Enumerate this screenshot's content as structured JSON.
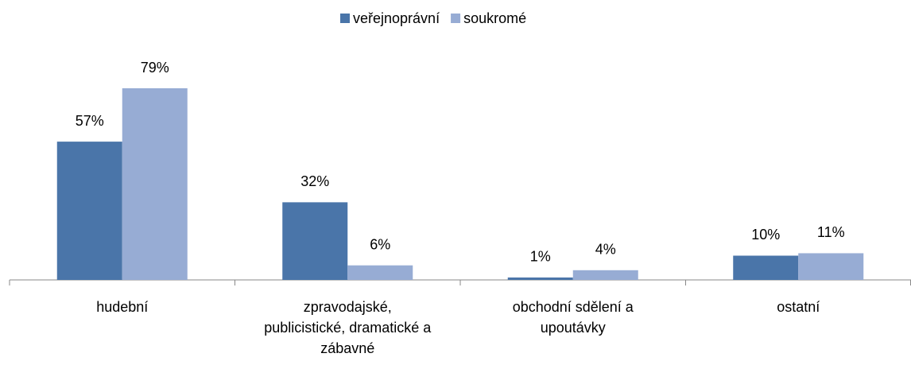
{
  "chart_data": {
    "type": "bar",
    "categories": [
      "hudební",
      "zpravodajské,\npublicistické, dramatické a\nzábavné",
      "obchodní sdělení a\nupoutávky",
      "ostatní"
    ],
    "series": [
      {
        "name": "veřejnoprávní",
        "color": "#4a75a9",
        "values": [
          57,
          32,
          1,
          10
        ],
        "value_labels": [
          "57%",
          "32%",
          "1%",
          "10%"
        ]
      },
      {
        "name": "soukromé",
        "color": "#97acd4",
        "values": [
          79,
          6,
          4,
          11
        ],
        "value_labels": [
          "79%",
          "6%",
          "4%",
          "11%"
        ]
      }
    ],
    "legend": "top"
  }
}
